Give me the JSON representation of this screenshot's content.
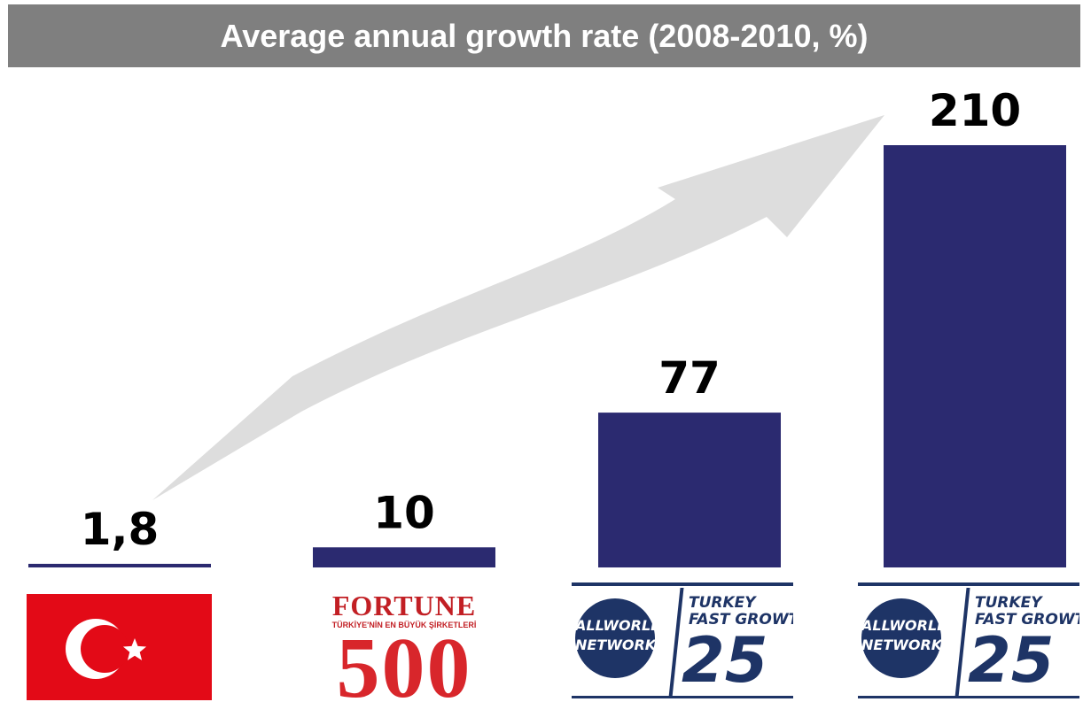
{
  "title": "Average annual growth rate (2008-2010, %)",
  "colors": {
    "bar": "#2b2a70",
    "title_bg": "#7f7f7f",
    "arrow": "#dddddd",
    "label": "#000000"
  },
  "chart_data": {
    "type": "bar",
    "title": "Average annual growth rate (2008-2010, %)",
    "categories": [
      "Turkey",
      "Fortune 500 Türkiye",
      "Turkey Fast Growth 25",
      "Turkey Fast Growth 25"
    ],
    "values": [
      1.8,
      10,
      77,
      210
    ],
    "value_labels": [
      "1,8",
      "10",
      "77",
      "210"
    ],
    "ylim": [
      0,
      210
    ],
    "grid": false,
    "legend": "none",
    "annotation": "trend-arrow"
  },
  "logos": {
    "fortune": {
      "name": "FORTUNE",
      "country": "TÜRKİYE",
      "subtitle": "TÜRKİYE'NİN EN BÜYÜK ŞİRKETLERİ",
      "number": "500"
    },
    "allworld": {
      "circle_line1": "ALLWORLD",
      "circle_line2": "NETWORK",
      "line1": "TURKEY",
      "line2": "FAST GROWTH",
      "number": "25"
    }
  }
}
